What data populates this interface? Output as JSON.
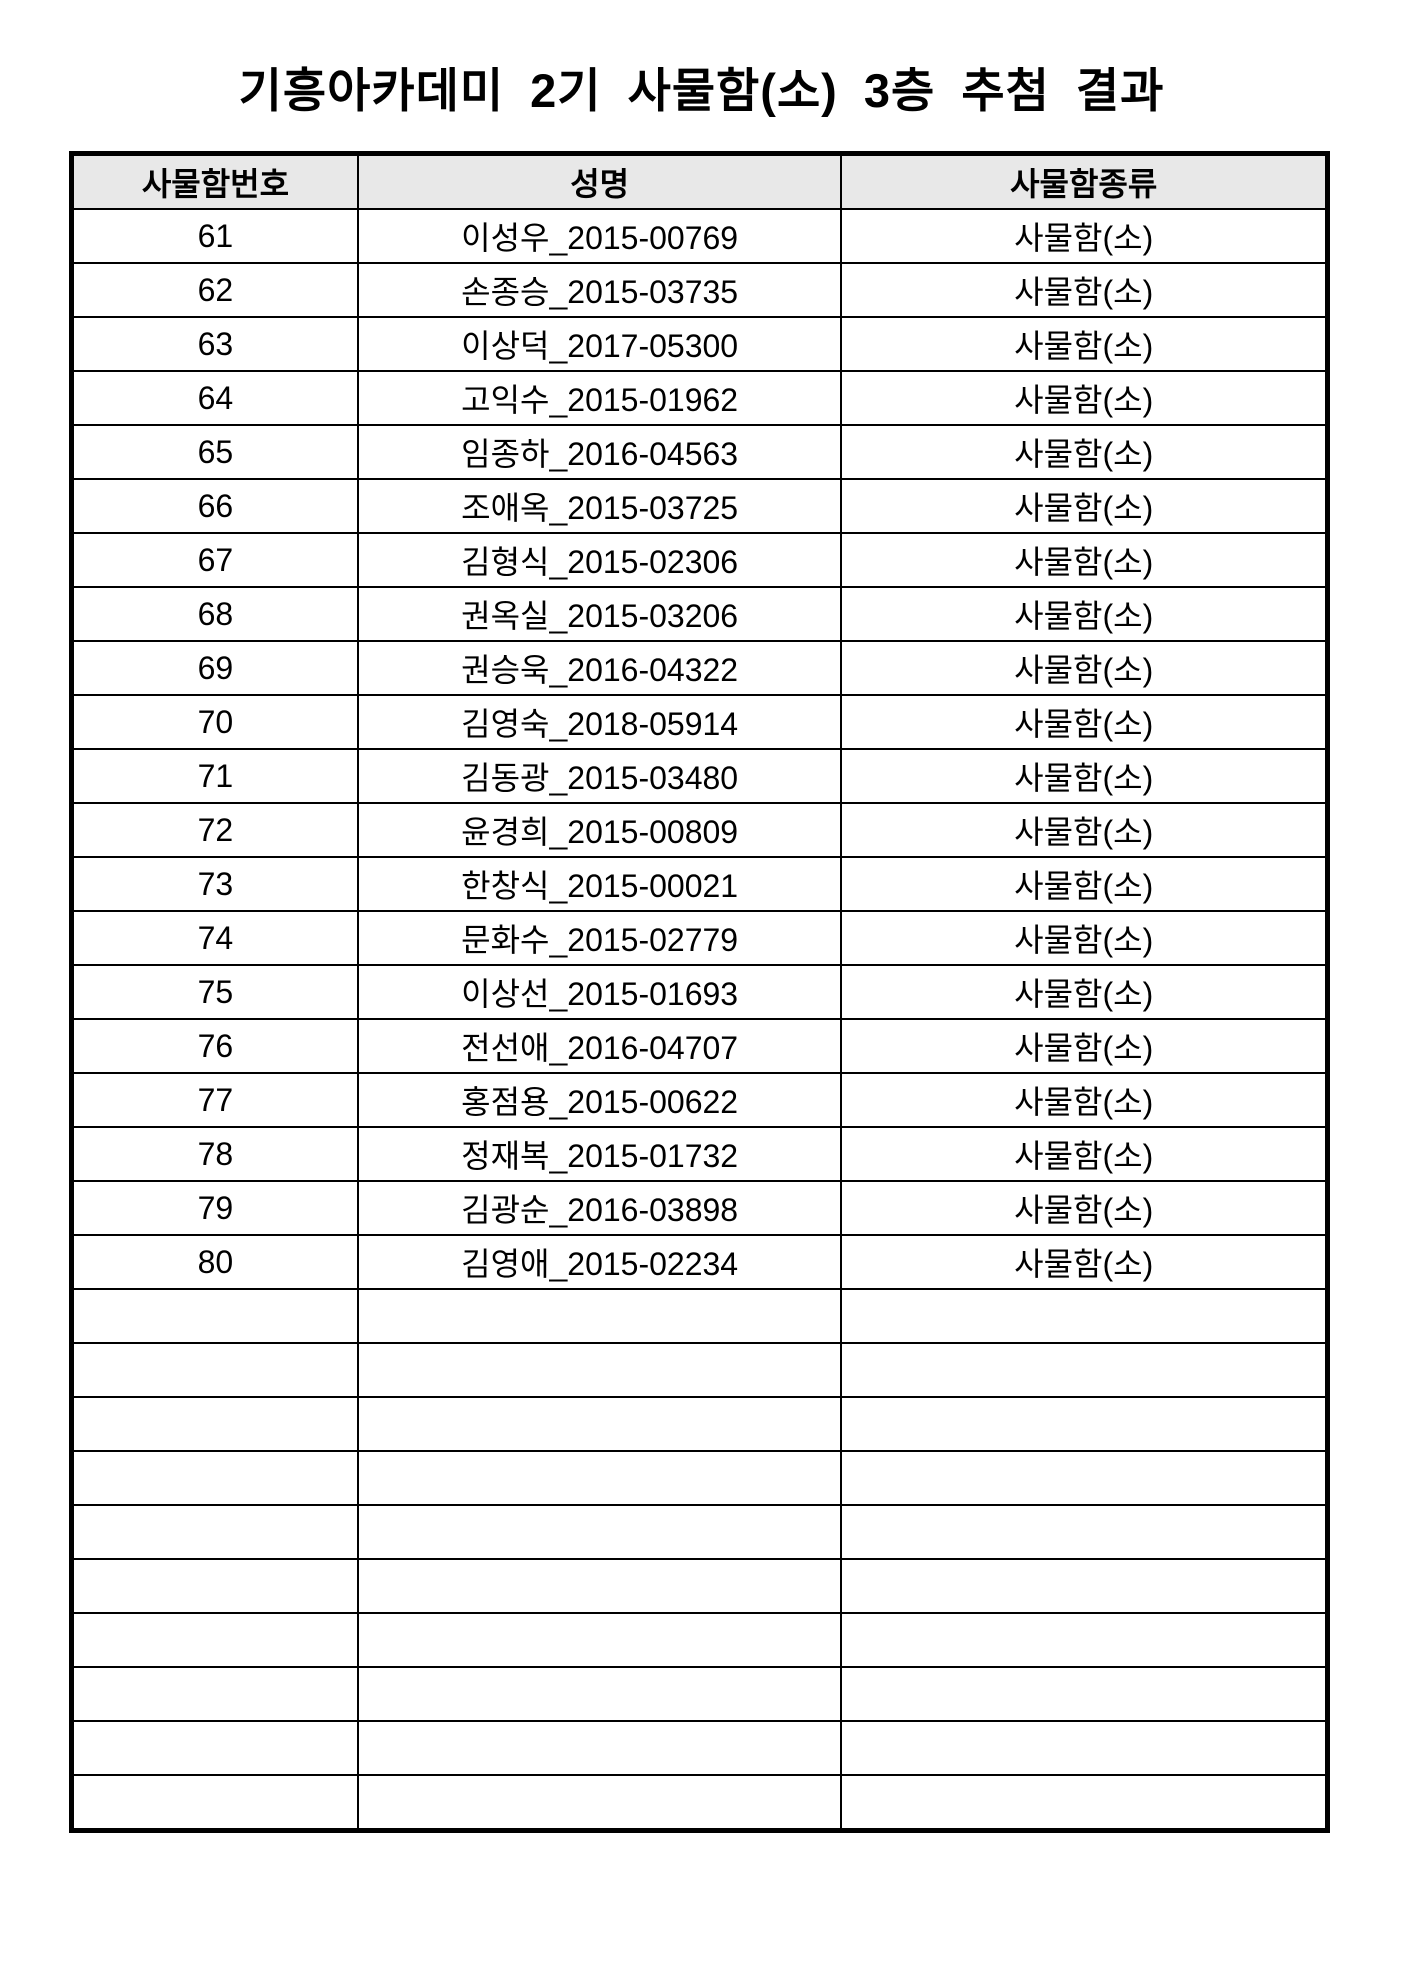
{
  "page": {
    "title": "기흥아카데미 2기 사물함(소) 3층 추첨 결과"
  },
  "table": {
    "columns": [
      "사물함번호",
      "성명",
      "사물함종류"
    ],
    "rows": [
      [
        "61",
        "이성우_2015-00769",
        "사물함(소)"
      ],
      [
        "62",
        "손종승_2015-03735",
        "사물함(소)"
      ],
      [
        "63",
        "이상덕_2017-05300",
        "사물함(소)"
      ],
      [
        "64",
        "고익수_2015-01962",
        "사물함(소)"
      ],
      [
        "65",
        "임종하_2016-04563",
        "사물함(소)"
      ],
      [
        "66",
        "조애옥_2015-03725",
        "사물함(소)"
      ],
      [
        "67",
        "김형식_2015-02306",
        "사물함(소)"
      ],
      [
        "68",
        "권옥실_2015-03206",
        "사물함(소)"
      ],
      [
        "69",
        "권승욱_2016-04322",
        "사물함(소)"
      ],
      [
        "70",
        "김영숙_2018-05914",
        "사물함(소)"
      ],
      [
        "71",
        "김동광_2015-03480",
        "사물함(소)"
      ],
      [
        "72",
        "윤경희_2015-00809",
        "사물함(소)"
      ],
      [
        "73",
        "한창식_2015-00021",
        "사물함(소)"
      ],
      [
        "74",
        "문화수_2015-02779",
        "사물함(소)"
      ],
      [
        "75",
        "이상선_2015-01693",
        "사물함(소)"
      ],
      [
        "76",
        "전선애_2016-04707",
        "사물함(소)"
      ],
      [
        "77",
        "홍점용_2015-00622",
        "사물함(소)"
      ],
      [
        "78",
        "정재복_2015-01732",
        "사물함(소)"
      ],
      [
        "79",
        "김광순_2016-03898",
        "사물함(소)"
      ],
      [
        "80",
        "김영애_2015-02234",
        "사물함(소)"
      ]
    ],
    "empty_rows": 10
  },
  "colors": {
    "header_bg": "#e8e8e8",
    "border": "#000000",
    "text": "#000000",
    "page_bg": "#ffffff"
  }
}
